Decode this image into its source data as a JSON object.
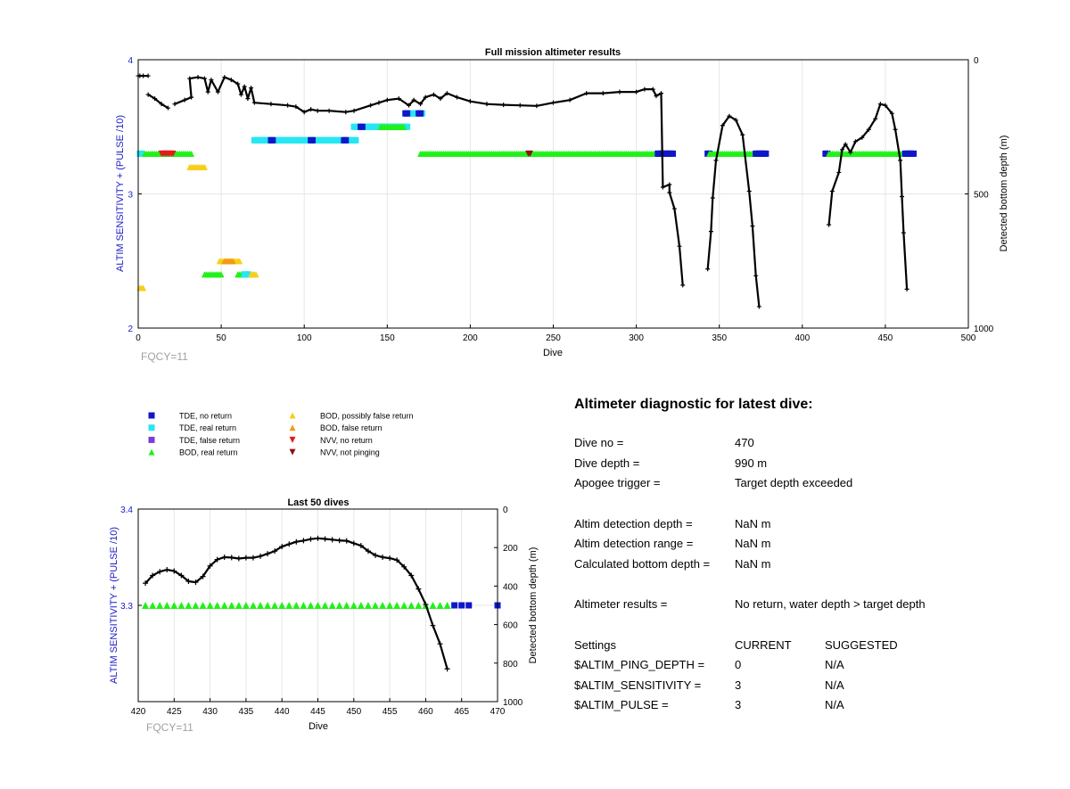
{
  "colors": {
    "tde_no_return": "#0f17c8",
    "tde_real_return": "#26e6f2",
    "tde_false_return": "#7e3bd6",
    "bod_real_return": "#22f01a",
    "bod_possibly_false": "#f7cf1a",
    "bod_false_return": "#f29a14",
    "nvv_no_return": "#e21b1b",
    "nvv_not_pinging": "#8e1010",
    "depth_line": "#000000",
    "left_axis": "#1a1ac8",
    "fqcy_text": "#a0a0a0"
  },
  "legend": [
    {
      "label": "TDE, no return",
      "marker": "square",
      "color_key": "tde_no_return"
    },
    {
      "label": "TDE, real return",
      "marker": "square",
      "color_key": "tde_real_return"
    },
    {
      "label": "TDE, false return",
      "marker": "square",
      "color_key": "tde_false_return"
    },
    {
      "label": "BOD, real return",
      "marker": "triangle-up",
      "color_key": "bod_real_return"
    },
    {
      "label": "BOD, possibly false return",
      "marker": "triangle-up",
      "color_key": "bod_possibly_false"
    },
    {
      "label": "BOD, false return",
      "marker": "triangle-up",
      "color_key": "bod_false_return"
    },
    {
      "label": "NVV, no return",
      "marker": "triangle-down",
      "color_key": "nvv_no_return"
    },
    {
      "label": "NVV, not pinging",
      "marker": "triangle-down",
      "color_key": "nvv_not_pinging"
    }
  ],
  "chart_data": [
    {
      "type": "scatter",
      "title": "Full mission altimeter results",
      "xlabel": "Dive",
      "ylabel": "ALTIM SENSITIVITY + (PULSE /10)",
      "y2label": "Detected bottom depth (m)",
      "annotation": "FQCY=11",
      "xlim": [
        0,
        500
      ],
      "ylim": [
        2,
        4
      ],
      "y2lim": [
        0,
        1000
      ],
      "y2_reversed": true,
      "xticks": [
        0,
        50,
        100,
        150,
        200,
        250,
        300,
        350,
        400,
        450,
        500
      ],
      "yticks": [
        2,
        3,
        4
      ],
      "y2ticks": [
        0,
        500,
        1000
      ],
      "grid": true,
      "marker_runs": [
        {
          "category": "tde_real_return",
          "x_start": 1,
          "x_end": 2,
          "y": 3.3
        },
        {
          "category": "bod_real_return",
          "x_start": 4,
          "x_end": 32,
          "y": 3.3
        },
        {
          "category": "nvv_no_return",
          "x_start": 14,
          "x_end": 21,
          "y": 3.3
        },
        {
          "category": "bod_possibly_false",
          "x_start": 31,
          "x_end": 40,
          "y": 3.2
        },
        {
          "category": "tde_real_return",
          "x_start": 70,
          "x_end": 131,
          "y": 3.4
        },
        {
          "category": "tde_no_return",
          "x_start": 80,
          "x_end": 81,
          "y": 3.4
        },
        {
          "category": "tde_no_return",
          "x_start": 104,
          "x_end": 105,
          "y": 3.4
        },
        {
          "category": "tde_no_return",
          "x_start": 124,
          "x_end": 125,
          "y": 3.4
        },
        {
          "category": "tde_real_return",
          "x_start": 130,
          "x_end": 162,
          "y": 3.5
        },
        {
          "category": "tde_no_return",
          "x_start": 134,
          "x_end": 135,
          "y": 3.5
        },
        {
          "category": "bod_real_return",
          "x_start": 146,
          "x_end": 160,
          "y": 3.5
        },
        {
          "category": "tde_real_return",
          "x_start": 161,
          "x_end": 171,
          "y": 3.6
        },
        {
          "category": "tde_no_return",
          "x_start": 161,
          "x_end": 162,
          "y": 3.6
        },
        {
          "category": "tde_no_return",
          "x_start": 169,
          "x_end": 170,
          "y": 3.6
        },
        {
          "category": "bod_real_return",
          "x_start": 170,
          "x_end": 312,
          "y": 3.3
        },
        {
          "category": "nvv_not_pinging",
          "x_start": 235,
          "x_end": 236,
          "y": 3.3
        },
        {
          "category": "tde_no_return",
          "x_start": 313,
          "x_end": 322,
          "y": 3.3
        },
        {
          "category": "tde_no_return",
          "x_start": 343,
          "x_end": 344,
          "y": 3.3
        },
        {
          "category": "bod_real_return",
          "x_start": 344,
          "x_end": 372,
          "y": 3.3
        },
        {
          "category": "tde_no_return",
          "x_start": 372,
          "x_end": 378,
          "y": 3.3
        },
        {
          "category": "tde_no_return",
          "x_start": 414,
          "x_end": 415,
          "y": 3.3
        },
        {
          "category": "bod_real_return",
          "x_start": 416,
          "x_end": 462,
          "y": 3.3
        },
        {
          "category": "tde_no_return",
          "x_start": 462,
          "x_end": 467,
          "y": 3.3
        },
        {
          "category": "bod_possibly_false",
          "x_start": 1,
          "x_end": 3,
          "y": 2.3
        },
        {
          "category": "bod_real_return",
          "x_start": 40,
          "x_end": 50,
          "y": 2.4
        },
        {
          "category": "bod_possibly_false",
          "x_start": 49,
          "x_end": 61,
          "y": 2.5
        },
        {
          "category": "bod_false_return",
          "x_start": 52,
          "x_end": 57,
          "y": 2.5
        },
        {
          "category": "bod_real_return",
          "x_start": 60,
          "x_end": 70,
          "y": 2.4
        },
        {
          "category": "tde_real_return",
          "x_start": 64,
          "x_end": 66,
          "y": 2.4
        },
        {
          "category": "bod_possibly_false",
          "x_start": 68,
          "x_end": 71,
          "y": 2.4
        }
      ],
      "depth_segments": [
        [
          [
            0,
            60
          ],
          [
            1,
            60
          ],
          [
            3,
            60
          ],
          [
            6,
            60
          ]
        ],
        [
          [
            6,
            130
          ],
          [
            10,
            145
          ],
          [
            14,
            165
          ],
          [
            18,
            180
          ]
        ],
        [
          [
            22,
            165
          ],
          [
            28,
            150
          ],
          [
            32,
            140
          ],
          [
            31,
            70
          ],
          [
            36,
            65
          ],
          [
            40,
            70
          ],
          [
            42,
            120
          ],
          [
            44,
            75
          ],
          [
            48,
            120
          ],
          [
            52,
            65
          ],
          [
            56,
            75
          ],
          [
            60,
            90
          ],
          [
            62,
            130
          ],
          [
            64,
            100
          ],
          [
            66,
            145
          ],
          [
            68,
            105
          ],
          [
            70,
            160
          ],
          [
            80,
            165
          ],
          [
            90,
            170
          ],
          [
            95,
            175
          ],
          [
            100,
            195
          ],
          [
            104,
            185
          ],
          [
            108,
            190
          ],
          [
            115,
            190
          ],
          [
            125,
            195
          ],
          [
            130,
            190
          ],
          [
            140,
            170
          ],
          [
            145,
            160
          ],
          [
            150,
            150
          ],
          [
            157,
            145
          ],
          [
            163,
            170
          ],
          [
            166,
            150
          ],
          [
            170,
            165
          ],
          [
            173,
            140
          ],
          [
            178,
            130
          ],
          [
            182,
            145
          ],
          [
            186,
            125
          ],
          [
            192,
            140
          ],
          [
            200,
            155
          ],
          [
            210,
            165
          ],
          [
            220,
            168
          ],
          [
            230,
            170
          ],
          [
            240,
            172
          ],
          [
            250,
            160
          ],
          [
            260,
            150
          ],
          [
            270,
            125
          ],
          [
            280,
            125
          ],
          [
            290,
            120
          ],
          [
            300,
            120
          ],
          [
            305,
            110
          ],
          [
            310,
            110
          ],
          [
            312,
            135
          ],
          [
            315,
            125
          ],
          [
            316,
            475
          ],
          [
            320,
            465
          ],
          [
            320,
            495
          ],
          [
            323,
            555
          ],
          [
            326,
            695
          ],
          [
            328,
            840
          ]
        ],
        [
          [
            343,
            780
          ],
          [
            345,
            640
          ],
          [
            346,
            515
          ],
          [
            348,
            375
          ],
          [
            352,
            245
          ],
          [
            356,
            210
          ],
          [
            360,
            225
          ],
          [
            364,
            280
          ],
          [
            368,
            490
          ],
          [
            370,
            620
          ],
          [
            372,
            805
          ],
          [
            374,
            920
          ]
        ],
        [
          [
            416,
            615
          ],
          [
            418,
            490
          ],
          [
            422,
            420
          ],
          [
            424,
            335
          ],
          [
            426,
            315
          ],
          [
            429,
            345
          ],
          [
            432,
            305
          ],
          [
            436,
            290
          ],
          [
            440,
            260
          ],
          [
            444,
            220
          ],
          [
            447,
            165
          ],
          [
            450,
            170
          ],
          [
            454,
            200
          ],
          [
            456,
            260
          ],
          [
            459,
            375
          ],
          [
            460,
            510
          ],
          [
            461,
            645
          ],
          [
            463,
            855
          ]
        ]
      ]
    },
    {
      "type": "scatter",
      "title": "Last 50 dives",
      "xlabel": "Dive",
      "ylabel": "ALTIM SENSITIVITY + (PULSE /10)",
      "y2label": "Detected bottom depth (m)",
      "annotation": "FQCY=11",
      "xlim": [
        420,
        470
      ],
      "ylim": [
        3.2,
        3.4
      ],
      "y2lim": [
        0,
        1000
      ],
      "y2_reversed": true,
      "xticks": [
        420,
        425,
        430,
        435,
        440,
        445,
        450,
        455,
        460,
        465,
        470
      ],
      "yticks": [
        3.3,
        3.4
      ],
      "y2ticks": [
        0,
        200,
        400,
        600,
        800,
        1000
      ],
      "grid": true,
      "bod_real_return_x": [
        421,
        422,
        423,
        424,
        425,
        426,
        427,
        428,
        429,
        430,
        431,
        432,
        433,
        434,
        435,
        436,
        437,
        438,
        439,
        440,
        441,
        442,
        443,
        444,
        445,
        446,
        447,
        448,
        449,
        450,
        451,
        452,
        453,
        454,
        455,
        456,
        457,
        458,
        459,
        460,
        461,
        462,
        463
      ],
      "bod_real_return_y": 3.3,
      "tde_no_return_x": [
        464,
        465,
        466,
        470
      ],
      "tde_no_return_y": 3.3,
      "depth_x": [
        421,
        422,
        423,
        424,
        425,
        426,
        427,
        428,
        429,
        430,
        431,
        432,
        433,
        434,
        435,
        436,
        437,
        438,
        439,
        440,
        441,
        442,
        443,
        444,
        445,
        446,
        447,
        448,
        449,
        450,
        451,
        452,
        453,
        454,
        455,
        456,
        457,
        458,
        459,
        460,
        461,
        462,
        463
      ],
      "depth_y": [
        385,
        345,
        325,
        315,
        322,
        345,
        375,
        380,
        350,
        295,
        262,
        250,
        252,
        257,
        253,
        253,
        245,
        232,
        218,
        195,
        182,
        170,
        164,
        156,
        152,
        155,
        159,
        163,
        165,
        178,
        190,
        218,
        240,
        250,
        255,
        265,
        300,
        345,
        415,
        495,
        605,
        700,
        830
      ]
    }
  ],
  "diagnostic": {
    "title": "Altimeter diagnostic for latest dive:",
    "dive_no_label": "Dive no =",
    "dive_no": "470",
    "dive_depth_label": "Dive depth =",
    "dive_depth": "990 m",
    "apogee_label": "Apogee trigger =",
    "apogee": "Target depth exceeded",
    "detection_depth_label": "Altim detection depth =",
    "detection_depth": "NaN m",
    "detection_range_label": "Altim detection range =",
    "detection_range": "NaN m",
    "bottom_depth_label": "Calculated bottom depth =",
    "bottom_depth": "NaN m",
    "results_label": "Altimeter results =",
    "results": "No return, water depth > target depth",
    "settings_label": "Settings",
    "current_label": "CURRENT",
    "suggested_label": "SUGGESTED",
    "ping_depth_label": "$ALTIM_PING_DEPTH =",
    "ping_depth_current": "0",
    "ping_depth_suggested": "N/A",
    "sensitivity_label": "$ALTIM_SENSITIVITY =",
    "sensitivity_current": "3",
    "sensitivity_suggested": "N/A",
    "pulse_label": "$ALTIM_PULSE =",
    "pulse_current": "3",
    "pulse_suggested": "N/A"
  }
}
